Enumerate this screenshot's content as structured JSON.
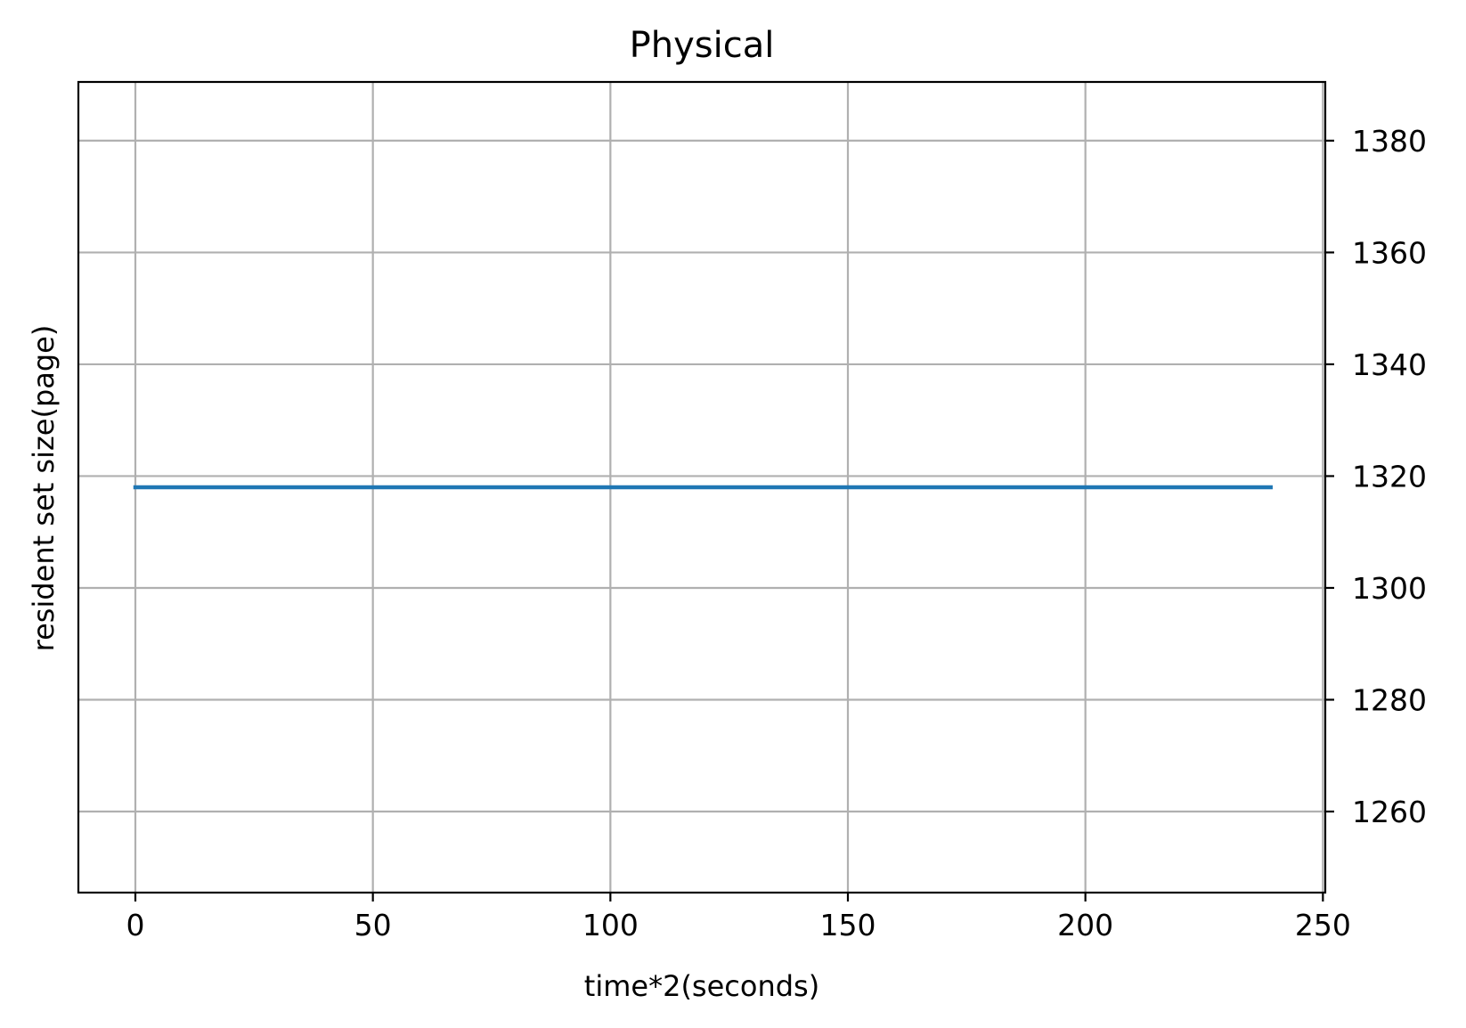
{
  "chart_data": {
    "type": "line",
    "title": "Physical",
    "xlabel": "time*2(seconds)",
    "ylabel": "resident set size(page)",
    "y_axis_side": "right",
    "grid": true,
    "xlim": [
      -12,
      250.5
    ],
    "ylim": [
      1245.5,
      1390.5
    ],
    "xticks": [
      0,
      50,
      100,
      150,
      200,
      250
    ],
    "yticks": [
      1260,
      1280,
      1300,
      1320,
      1340,
      1360,
      1380
    ],
    "series": [
      {
        "color": "#1f77b4",
        "x": [
          0,
          239
        ],
        "y": [
          1318,
          1318
        ]
      }
    ]
  }
}
